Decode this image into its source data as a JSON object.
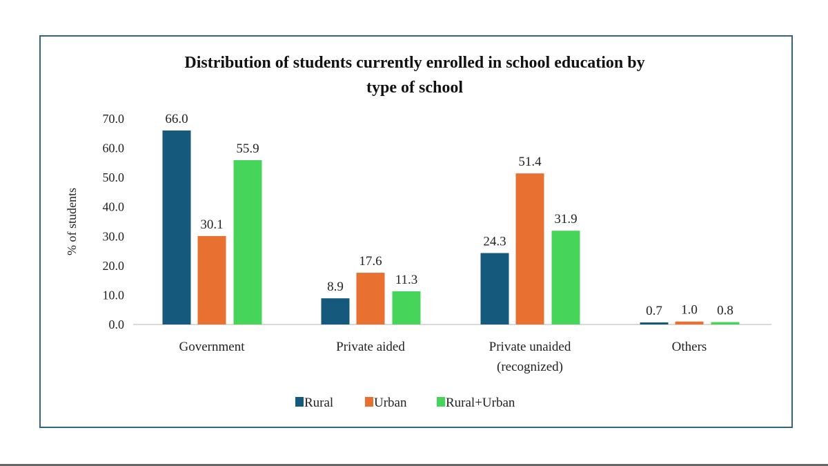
{
  "chart_data": {
    "type": "bar",
    "title": "Distribution of students currently enrolled in school education by type of school",
    "title_lines": [
      "Distribution of students currently enrolled in school education by",
      "type of school"
    ],
    "ylabel": "% of students",
    "xlabel": "",
    "ylim": [
      0,
      70
    ],
    "yticks": [
      "0.0",
      "10.0",
      "20.0",
      "30.0",
      "40.0",
      "50.0",
      "60.0",
      "70.0"
    ],
    "categories": [
      "Government",
      "Private aided",
      "Private unaided (recognized)",
      "Others"
    ],
    "category_lines": [
      [
        "Government"
      ],
      [
        "Private aided"
      ],
      [
        "Private unaided",
        "(recognized)"
      ],
      [
        "Others"
      ]
    ],
    "series": [
      {
        "name": "Rural",
        "color": "#155a7c",
        "values": [
          66.0,
          8.9,
          24.3,
          0.7
        ]
      },
      {
        "name": "Urban",
        "color": "#e87132",
        "values": [
          30.1,
          17.6,
          51.4,
          1.0
        ]
      },
      {
        "name": "Rural+Urban",
        "color": "#47d45a",
        "values": [
          55.9,
          11.3,
          31.9,
          0.8
        ]
      }
    ],
    "grid": false,
    "legend": "bottom",
    "data_labels": true
  }
}
